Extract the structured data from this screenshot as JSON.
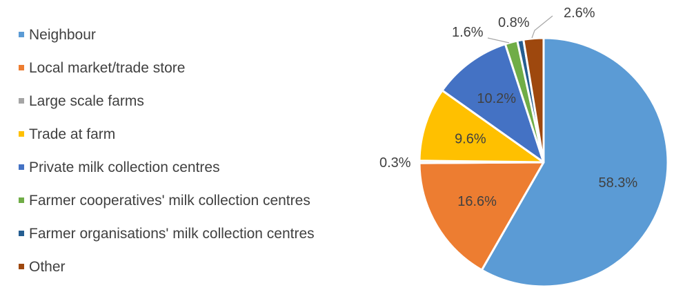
{
  "chart_data": {
    "type": "pie",
    "title": "",
    "categories": [
      "Neighbour",
      "Local market/trade store",
      "Large scale farms",
      "Trade at farm",
      "Private milk collection centres",
      "Farmer cooperatives' milk collection centres",
      "Farmer organisations' milk collection centres",
      "Other"
    ],
    "values": [
      58.3,
      16.6,
      0.3,
      9.6,
      10.2,
      1.6,
      0.8,
      2.6
    ],
    "labels": [
      "58.3%",
      "16.6%",
      "0.3%",
      "9.6%",
      "10.2%",
      "1.6%",
      "0.8%",
      "2.6%"
    ],
    "colors": [
      "#5B9BD5",
      "#ED7D31",
      "#A5A5A5",
      "#FFC000",
      "#4472C4",
      "#70AD47",
      "#255E91",
      "#9E480E"
    ],
    "start_angle_deg": 0,
    "direction": "clockwise",
    "legend_position": "left"
  }
}
